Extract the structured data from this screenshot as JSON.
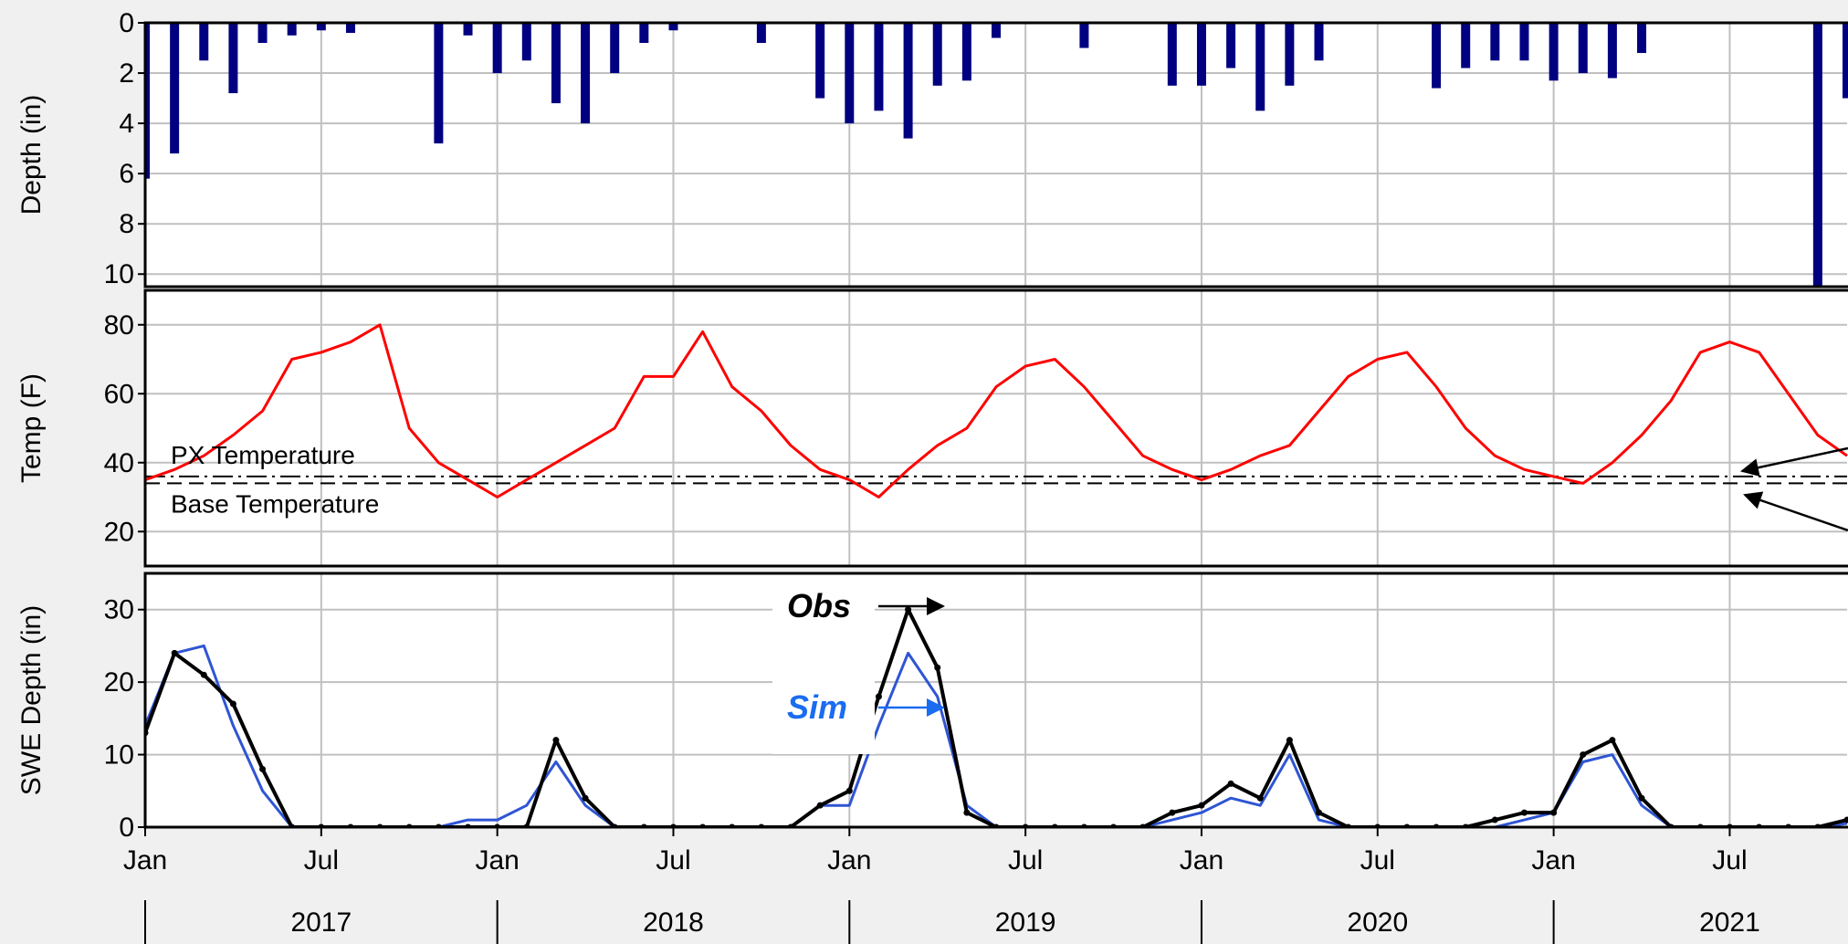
{
  "chart_data": [
    {
      "type": "bar",
      "y_label": "Depth (in)",
      "invert_y": true,
      "color": "#000080",
      "ylim": [
        0,
        10.5
      ],
      "yticks": [
        0,
        2,
        4,
        6,
        8,
        10
      ],
      "grid": true,
      "xlim": [
        "2017-01",
        "2021-11"
      ],
      "x": [
        "2017-01",
        "2017-02",
        "2017-03",
        "2017-04",
        "2017-05",
        "2017-06",
        "2017-07",
        "2017-08",
        "2017-09",
        "2017-10",
        "2017-11",
        "2017-12",
        "2018-01",
        "2018-02",
        "2018-03",
        "2018-04",
        "2018-05",
        "2018-06",
        "2018-07",
        "2018-08",
        "2018-09",
        "2018-10",
        "2018-11",
        "2018-12",
        "2019-01",
        "2019-02",
        "2019-03",
        "2019-04",
        "2019-05",
        "2019-06",
        "2019-07",
        "2019-08",
        "2019-09",
        "2019-10",
        "2019-11",
        "2019-12",
        "2020-01",
        "2020-02",
        "2020-03",
        "2020-04",
        "2020-05",
        "2020-06",
        "2020-07",
        "2020-08",
        "2020-09",
        "2020-10",
        "2020-11",
        "2020-12",
        "2021-01",
        "2021-02",
        "2021-03",
        "2021-04",
        "2021-05",
        "2021-06",
        "2021-07",
        "2021-08",
        "2021-09",
        "2021-10",
        "2021-11"
      ],
      "values": [
        6.2,
        5.2,
        1.5,
        2.8,
        0.8,
        0.5,
        0.3,
        0.4,
        0,
        0,
        4.8,
        0.5,
        2.0,
        1.5,
        3.2,
        4.0,
        2.0,
        0.8,
        0.3,
        0,
        0,
        0.8,
        0,
        3.0,
        4.0,
        3.5,
        4.6,
        2.5,
        2.3,
        0.6,
        0,
        0,
        1.0,
        0,
        0,
        2.5,
        2.5,
        1.8,
        3.5,
        2.5,
        1.5,
        0,
        0,
        0,
        2.6,
        1.8,
        1.5,
        1.5,
        2.3,
        2.0,
        2.2,
        1.2,
        0,
        0,
        0,
        0,
        0,
        10.5,
        3.0
      ]
    },
    {
      "type": "line",
      "y_label": "Temp (F)",
      "ylim": [
        10,
        90
      ],
      "yticks": [
        20,
        40,
        60,
        80
      ],
      "grid": true,
      "xlim": [
        "2017-01",
        "2021-11"
      ],
      "x": [
        "2017-01",
        "2017-02",
        "2017-03",
        "2017-04",
        "2017-05",
        "2017-06",
        "2017-07",
        "2017-08",
        "2017-09",
        "2017-10",
        "2017-11",
        "2017-12",
        "2018-01",
        "2018-02",
        "2018-03",
        "2018-04",
        "2018-05",
        "2018-06",
        "2018-07",
        "2018-08",
        "2018-09",
        "2018-10",
        "2018-11",
        "2018-12",
        "2019-01",
        "2019-02",
        "2019-03",
        "2019-04",
        "2019-05",
        "2019-06",
        "2019-07",
        "2019-08",
        "2019-09",
        "2019-10",
        "2019-11",
        "2019-12",
        "2020-01",
        "2020-02",
        "2020-03",
        "2020-04",
        "2020-05",
        "2020-06",
        "2020-07",
        "2020-08",
        "2020-09",
        "2020-10",
        "2020-11",
        "2020-12",
        "2021-01",
        "2021-02",
        "2021-03",
        "2021-04",
        "2021-05",
        "2021-06",
        "2021-07",
        "2021-08",
        "2021-09",
        "2021-10",
        "2021-11"
      ],
      "series": [
        {
          "color": "#ff0000",
          "values": [
            35,
            38,
            42,
            48,
            55,
            70,
            72,
            75,
            80,
            50,
            40,
            35,
            30,
            35,
            40,
            45,
            50,
            65,
            65,
            78,
            62,
            55,
            45,
            38,
            35,
            30,
            38,
            45,
            50,
            62,
            68,
            70,
            62,
            52,
            42,
            38,
            35,
            38,
            42,
            45,
            55,
            65,
            70,
            72,
            62,
            50,
            42,
            38,
            36,
            34,
            40,
            48,
            58,
            72,
            75,
            72,
            60,
            48,
            42
          ]
        }
      ],
      "thresholds": [
        {
          "label": "PX Temperature",
          "value": 36,
          "style": "dashdot"
        },
        {
          "label": "Base Temperature",
          "value": 34,
          "style": "dashed"
        }
      ]
    },
    {
      "type": "line",
      "y_label": "SWE Depth (in)",
      "ylim": [
        0,
        35
      ],
      "yticks": [
        0,
        10,
        20,
        30
      ],
      "grid": true,
      "xlim": [
        "2017-01",
        "2021-11"
      ],
      "x": [
        "2017-01",
        "2017-02",
        "2017-03",
        "2017-04",
        "2017-05",
        "2017-06",
        "2017-07",
        "2017-08",
        "2017-09",
        "2017-10",
        "2017-11",
        "2017-12",
        "2018-01",
        "2018-02",
        "2018-03",
        "2018-04",
        "2018-05",
        "2018-06",
        "2018-07",
        "2018-08",
        "2018-09",
        "2018-10",
        "2018-11",
        "2018-12",
        "2019-01",
        "2019-02",
        "2019-03",
        "2019-04",
        "2019-05",
        "2019-06",
        "2019-07",
        "2019-08",
        "2019-09",
        "2019-10",
        "2019-11",
        "2019-12",
        "2020-01",
        "2020-02",
        "2020-03",
        "2020-04",
        "2020-05",
        "2020-06",
        "2020-07",
        "2020-08",
        "2020-09",
        "2020-10",
        "2020-11",
        "2020-12",
        "2021-01",
        "2021-02",
        "2021-03",
        "2021-04",
        "2021-05",
        "2021-06",
        "2021-07",
        "2021-08",
        "2021-09",
        "2021-10",
        "2021-11"
      ],
      "series": [
        {
          "name": "Sim",
          "color": "#2f55d4",
          "values": [
            14,
            24,
            25,
            14,
            5,
            0,
            0,
            0,
            0,
            0,
            0,
            1,
            1,
            3,
            9,
            3,
            0,
            0,
            0,
            0,
            0,
            0,
            0,
            3,
            3,
            14,
            24,
            18,
            3,
            0,
            0,
            0,
            0,
            0,
            0,
            1,
            2,
            4,
            3,
            10,
            1,
            0,
            0,
            0,
            0,
            0,
            0,
            1,
            2,
            9,
            10,
            3,
            0,
            0,
            0,
            0,
            0,
            0,
            0.5
          ]
        },
        {
          "name": "Obs",
          "color": "#000000",
          "values": [
            13,
            24,
            21,
            17,
            8,
            0,
            0,
            0,
            0,
            0,
            0,
            0,
            0,
            0,
            12,
            4,
            0,
            0,
            0,
            0,
            0,
            0,
            0,
            3,
            5,
            18,
            30,
            22,
            2,
            0,
            0,
            0,
            0,
            0,
            0,
            2,
            3,
            6,
            4,
            12,
            2,
            0,
            0,
            0,
            0,
            0,
            1,
            2,
            2,
            10,
            12,
            4,
            0,
            0,
            0,
            0,
            0,
            0,
            1
          ]
        }
      ],
      "xticks": [
        {
          "value": "2017-01",
          "label": "Jan"
        },
        {
          "value": "2017-07",
          "label": "Jul"
        },
        {
          "value": "2018-01",
          "label": "Jan"
        },
        {
          "value": "2018-07",
          "label": "Jul"
        },
        {
          "value": "2019-01",
          "label": "Jan"
        },
        {
          "value": "2019-07",
          "label": "Jul"
        },
        {
          "value": "2020-01",
          "label": "Jan"
        },
        {
          "value": "2020-07",
          "label": "Jul"
        },
        {
          "value": "2021-01",
          "label": "Jan"
        },
        {
          "value": "2021-07",
          "label": "Jul"
        }
      ],
      "years": [
        {
          "value": "2017-07",
          "label": "2017"
        },
        {
          "value": "2018-07",
          "label": "2018"
        },
        {
          "value": "2019-07",
          "label": "2019"
        },
        {
          "value": "2020-07",
          "label": "2020"
        },
        {
          "value": "2021-07",
          "label": "2021"
        }
      ]
    }
  ]
}
